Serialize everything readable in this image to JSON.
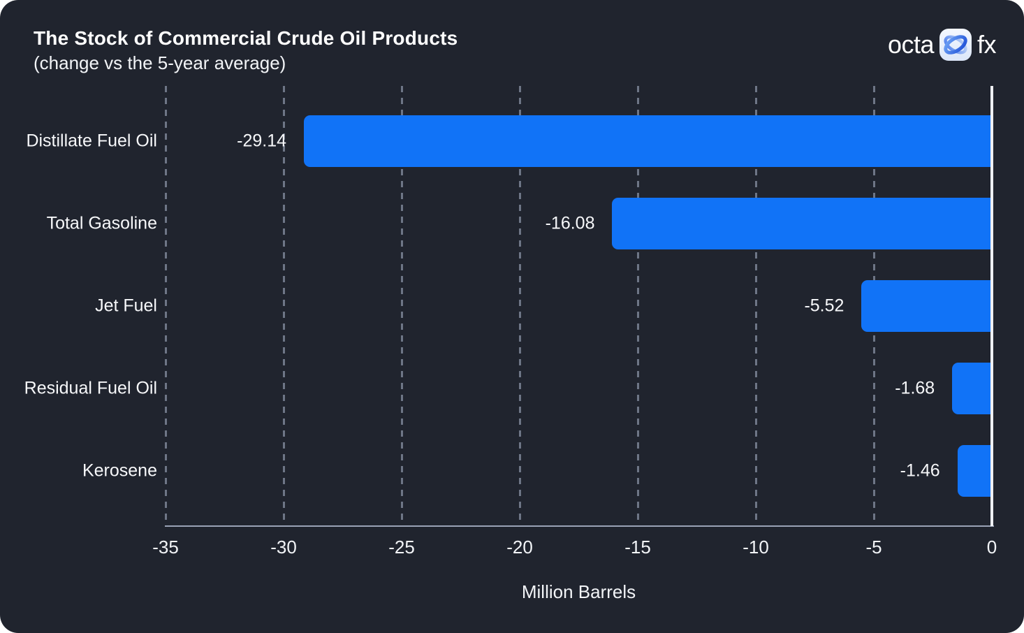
{
  "header": {
    "title": "The Stock of Commercial Crude Oil Products",
    "subtitle": "(change vs the 5-year average)"
  },
  "logo": {
    "text_left": "octa",
    "text_right": "fx",
    "icon": "octafx-orbit-icon"
  },
  "chart_data": {
    "type": "bar",
    "orientation": "horizontal",
    "categories": [
      "Distillate Fuel Oil",
      "Total Gasoline",
      "Jet Fuel",
      "Residual Fuel Oil",
      "Kerosene"
    ],
    "values": [
      -29.14,
      -16.08,
      -5.52,
      -1.68,
      -1.46
    ],
    "value_labels": [
      "-29.14",
      "-16.08",
      "-5.52",
      "-1.68",
      "-1.46"
    ],
    "title": "The Stock of Commercial Crude Oil Products (change vs the 5-year average)",
    "xlabel": "Million Barrels",
    "ylabel": "",
    "xlim": [
      -35,
      0
    ],
    "xticks": [
      -35,
      -30,
      -25,
      -20,
      -15,
      -10,
      -5,
      0
    ],
    "grid": "dashed-vertical-gridlines",
    "legend": "none",
    "bar_color": "#1173f7",
    "background_color": "#20242e",
    "gridline_color": "#98a2b6",
    "zero_line_color": "#eef0f3",
    "text_color": "#f7f8fa"
  }
}
